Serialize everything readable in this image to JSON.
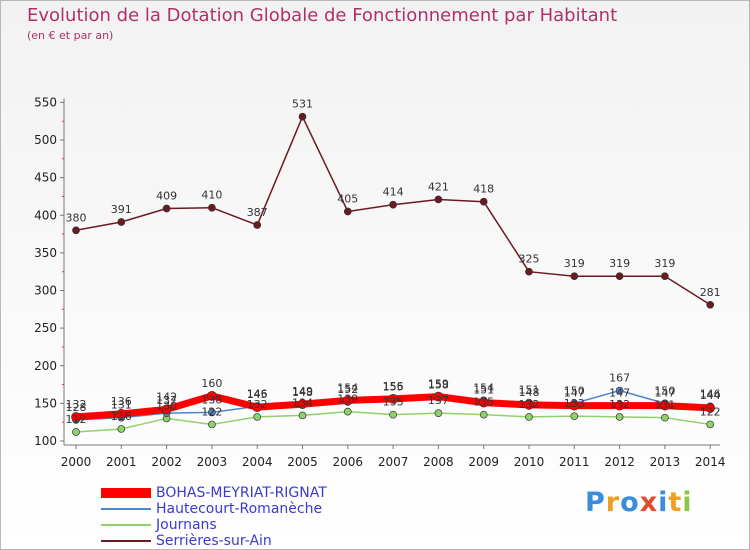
{
  "chart_data": {
    "type": "line",
    "title": "Evolution de la Dotation Globale de Fonctionnement par Habitant",
    "subtitle": "(en € et par an)",
    "xlabel": "",
    "ylabel": "",
    "ylim": [
      100,
      550
    ],
    "y_ticks": [
      100,
      150,
      200,
      250,
      300,
      350,
      400,
      450,
      500,
      550
    ],
    "categories": [
      "2000",
      "2001",
      "2002",
      "2003",
      "2004",
      "2005",
      "2006",
      "2007",
      "2008",
      "2009",
      "2010",
      "2011",
      "2012",
      "2013",
      "2014"
    ],
    "grid": false,
    "series": [
      {
        "name": "Serrières-sur-Ain",
        "color": "#6b1a22",
        "values": [
          380,
          391,
          409,
          410,
          387,
          531,
          405,
          414,
          421,
          418,
          325,
          319,
          319,
          319,
          281
        ]
      },
      {
        "name": "Journans",
        "color": "#8fd16a",
        "values": [
          112,
          116,
          130,
          122,
          132,
          134,
          139,
          135,
          137,
          135,
          132,
          133,
          132,
          131,
          122
        ]
      },
      {
        "name": "Hautecourt-Romanèche",
        "color": "#4f86c8",
        "values": [
          128,
          131,
          137,
          138,
          146,
          148,
          152,
          155,
          158,
          154,
          151,
          150,
          167,
          150,
          146
        ]
      },
      {
        "name": "BOHAS-MEYRIAT-RIGNAT",
        "color": "#ff0000",
        "values": [
          132,
          136,
          142,
          160,
          145,
          149,
          154,
          156,
          159,
          151,
          148,
          147,
          147,
          147,
          144
        ]
      }
    ],
    "legend_order": [
      "BOHAS-MEYRIAT-RIGNAT",
      "Hautecourt-Romanèche",
      "Journans",
      "Serrières-sur-Ain"
    ],
    "legend_position": "bottom-left"
  },
  "logo": {
    "letters": [
      "P",
      "r",
      "o",
      "x",
      "i",
      "t",
      "i"
    ],
    "colors": [
      "#3a8ed8",
      "#f0a020",
      "#3a8ed8",
      "#e24a2a",
      "#3a8ed8",
      "#f0a020",
      "#8dc63f"
    ]
  }
}
